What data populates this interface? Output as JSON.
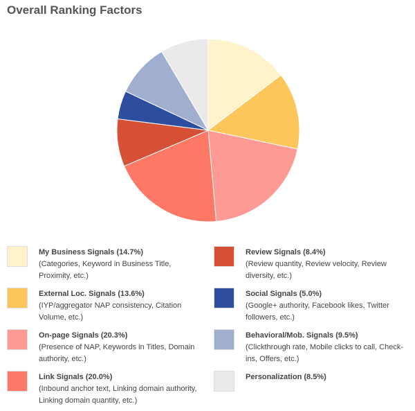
{
  "chart_data": {
    "type": "pie",
    "title": "Overall Ranking Factors",
    "categories": [
      "My Business Signals (14.7%)",
      "External Loc. Signals (13.6%)",
      "On-page Signals (20.3%)",
      "Link Signals (20.0%)",
      "Review Signals (8.4%)",
      "Social Signals (5.0%)",
      "Behavioral/Mob. Signals (9.5%)",
      "Personalization (8.5%)"
    ],
    "descriptions": [
      "(Categories, Keyword in Business Title, Proximity, etc.)",
      "(IYP/aggregator NAP consistency, Citation Volume, etc.)",
      "(Presence of NAP, Keywords in Titles, Domain authority, etc.)",
      "(Inbound anchor text, Linking domain authority, Linking domain quantity, etc.)",
      "(Review quantity, Review velocity, Review diversity, etc.)",
      "(Google+ authority, Facebook likes, Twitter followers, etc.)",
      "(Clickthrough rate, Mobile clicks to call, Check-ins, Offers, etc.)",
      null
    ],
    "values": [
      14.7,
      13.6,
      20.3,
      20.0,
      8.4,
      5.0,
      9.5,
      8.5
    ],
    "colors": [
      "#fff3cc",
      "#fcc65a",
      "#fd9a93",
      "#fe7866",
      "#d65035",
      "#2d4e9e",
      "#a0aecf",
      "#ebe9ea"
    ]
  }
}
